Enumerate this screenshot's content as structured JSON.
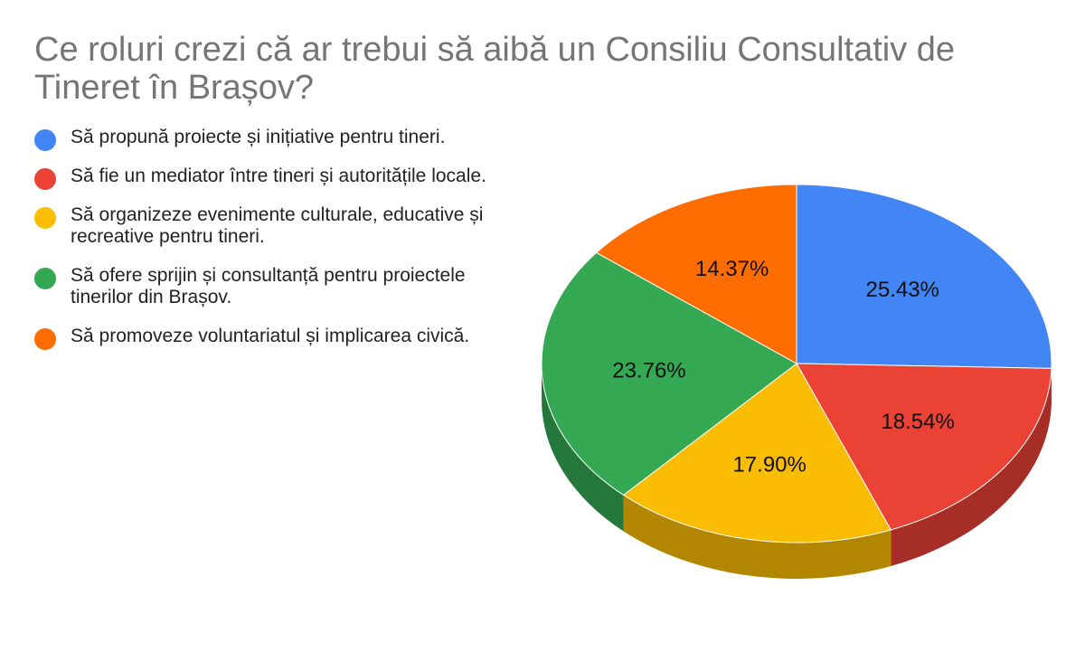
{
  "chart_data": {
    "type": "pie",
    "title": "Ce roluri crezi că ar trebui să aibă un Consiliu Consultativ de Tineret în Brașov?",
    "legend_position": "left",
    "slices": [
      {
        "name": "Să propună proiecte și inițiative pentru tineri.",
        "value": 25.43,
        "label": "25.43%",
        "color": "#4285f4",
        "side_color": "#2f5fae"
      },
      {
        "name": "Să fie un mediator între tineri și autoritățile locale.",
        "value": 18.54,
        "label": "18.54%",
        "color": "#ea4335",
        "side_color": "#a62e26"
      },
      {
        "name": "Să organizeze evenimente culturale, educative și recreative pentru tineri.",
        "value": 17.9,
        "label": "17.90%",
        "color": "#fbbc04",
        "side_color": "#b38600"
      },
      {
        "name": "Să ofere sprijin și consultanță pentru proiectele tinerilor din Brașov.",
        "value": 23.76,
        "label": "23.76%",
        "color": "#34a853",
        "side_color": "#24783b"
      },
      {
        "name": "Să promoveze voluntariatul și implicarea civică.",
        "value": 14.37,
        "label": "14.37%",
        "color": "#ff6d01",
        "side_color": "#b54d00"
      }
    ]
  }
}
